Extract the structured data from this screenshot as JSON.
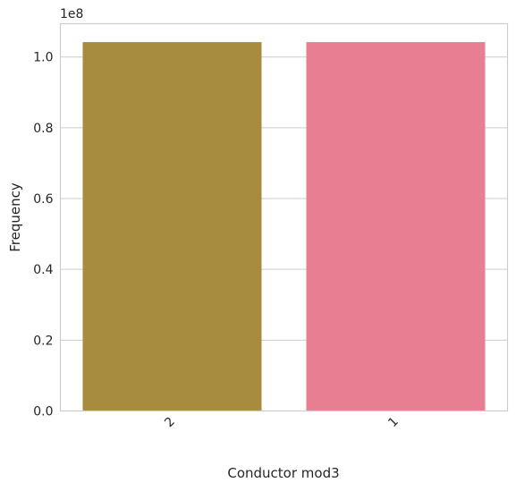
{
  "chart_data": {
    "type": "bar",
    "categories": [
      "2",
      "1"
    ],
    "values": [
      104200000,
      104200000
    ],
    "colors": [
      "#a78b3e",
      "#e77e92"
    ],
    "title": "",
    "xlabel": "Conductor mod3",
    "ylabel": "Frequency",
    "ylim": [
      0,
      109400000
    ],
    "yticks": [
      0,
      20000000,
      40000000,
      60000000,
      80000000,
      100000000
    ],
    "ytick_labels": [
      "0.0",
      "0.2",
      "0.4",
      "0.6",
      "0.8",
      "1.0"
    ],
    "offset_label": "1e8",
    "grid": "horizontal",
    "xtick_rotation": "45 degrees"
  }
}
